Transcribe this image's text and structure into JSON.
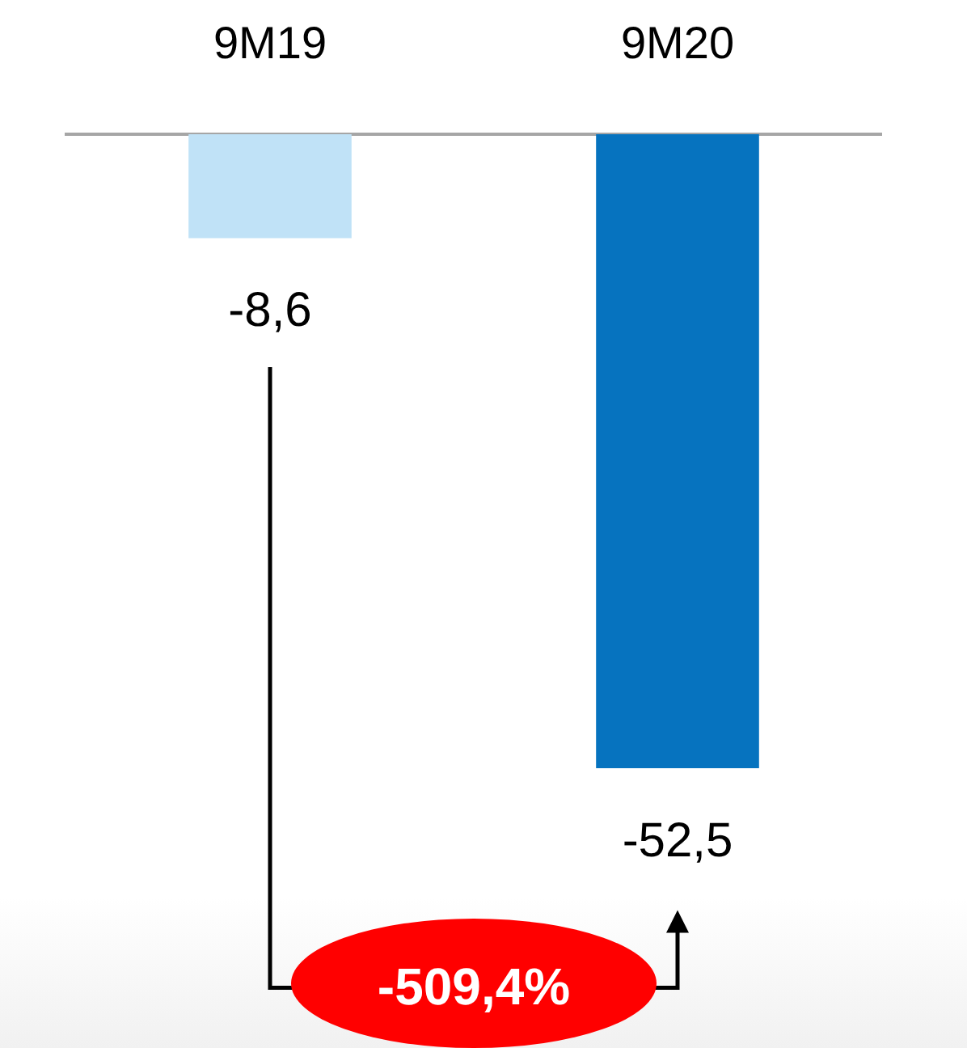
{
  "chart_data": {
    "type": "bar",
    "categories": [
      "9M19",
      "9M20"
    ],
    "values": [
      -8.6,
      -52.5
    ],
    "colors": [
      "#c0e2f7",
      "#0673bf"
    ],
    "value_labels": [
      "-8,6",
      "-52,5"
    ],
    "tick_labels": "x",
    "grid": false,
    "annotations": [
      "-509,4%"
    ]
  }
}
